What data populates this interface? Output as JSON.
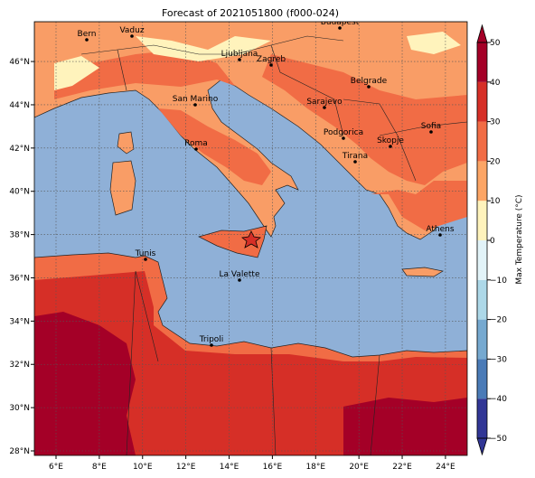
{
  "title": "Forecast of 2021051800 (f000-024)",
  "map": {
    "lon_ticks": [
      {
        "value": 6,
        "label": "6°E"
      },
      {
        "value": 8,
        "label": "8°E"
      },
      {
        "value": 10,
        "label": "10°E"
      },
      {
        "value": 12,
        "label": "12°E"
      },
      {
        "value": 14,
        "label": "14°E"
      },
      {
        "value": 16,
        "label": "16°E"
      },
      {
        "value": 18,
        "label": "18°E"
      },
      {
        "value": 20,
        "label": "20°E"
      },
      {
        "value": 22,
        "label": "22°E"
      },
      {
        "value": 24,
        "label": "24°E"
      }
    ],
    "lat_ticks": [
      {
        "value": 28,
        "label": "28°N"
      },
      {
        "value": 30,
        "label": "30°N"
      },
      {
        "value": 32,
        "label": "32°N"
      },
      {
        "value": 34,
        "label": "34°N"
      },
      {
        "value": 36,
        "label": "36°N"
      },
      {
        "value": 38,
        "label": "38°N"
      },
      {
        "value": 40,
        "label": "40°N"
      },
      {
        "value": 42,
        "label": "42°N"
      },
      {
        "value": 44,
        "label": "44°N"
      },
      {
        "value": 46,
        "label": "46°N"
      }
    ],
    "cities": [
      "Bern",
      "Vaduz",
      "Budapest",
      "Ljubljana",
      "Zagreb",
      "Belgrade",
      "San Marino",
      "Sarajevo",
      "Sofia",
      "Podgorica",
      "Skopje",
      "Roma",
      "Tirana",
      "Athens",
      "Tunis",
      "La Valette",
      "Tripoli"
    ]
  },
  "colorbar": {
    "label": "Max Temperature (°C)",
    "levels": [
      -50,
      -40,
      -30,
      -20,
      -10,
      0,
      10,
      20,
      30,
      40,
      50
    ],
    "colors": [
      "#313695",
      "#4a7bb7",
      "#76a9d0",
      "#add8e8",
      "#e2f3f8",
      "#fff3bc",
      "#fca565",
      "#f16c45",
      "#d62f27",
      "#a40027"
    ],
    "ticks": [
      {
        "value": -50,
        "label": "−50"
      },
      {
        "value": -40,
        "label": "−40"
      },
      {
        "value": -30,
        "label": "−30"
      },
      {
        "value": -20,
        "label": "−20"
      },
      {
        "value": -10,
        "label": "−10"
      },
      0,
      10,
      20,
      30,
      40,
      50
    ]
  }
}
